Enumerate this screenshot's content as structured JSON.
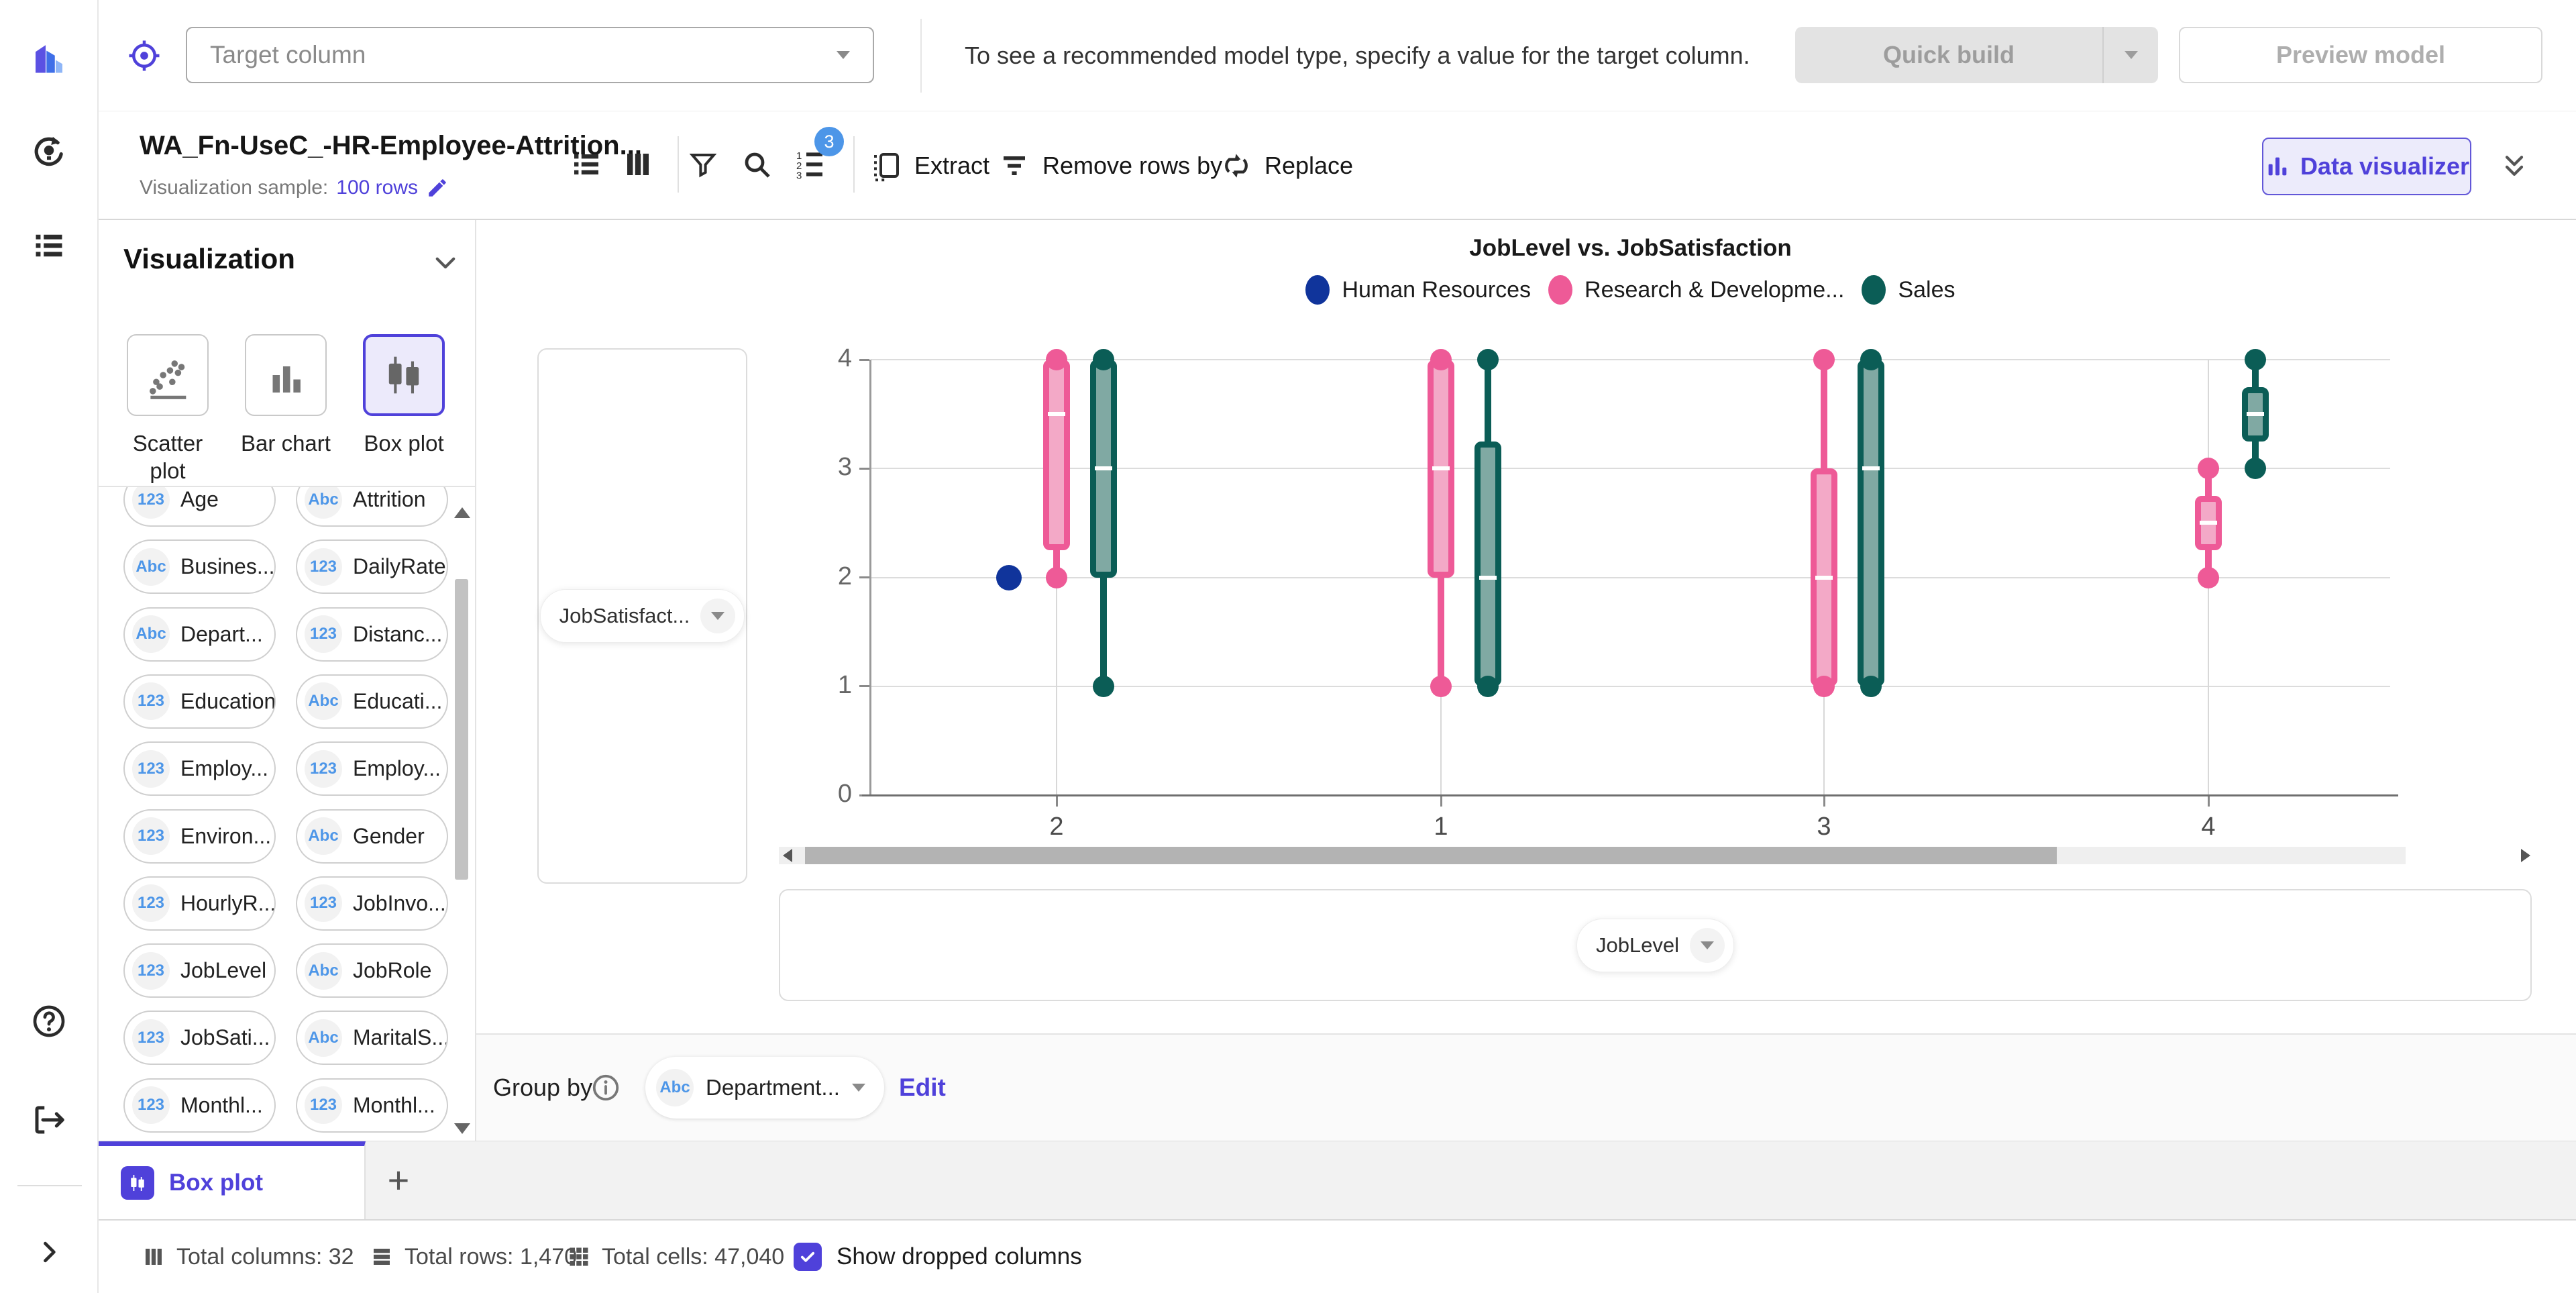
{
  "accent_color": "#4F41DA",
  "type_badge_color": "#4D96E8",
  "top_bar": {
    "target_placeholder": "Target column",
    "hint": "To see a recommended model type, specify a value for the target column.",
    "quick_build_label": "Quick build",
    "preview_model_label": "Preview model"
  },
  "dataset_bar": {
    "title": "WA_Fn-UseC_-HR-Employee-Attrition...",
    "sample_label": "Visualization sample:",
    "sample_value": "100 rows",
    "sort_badge": "3",
    "extract_label": "Extract",
    "remove_rows_label": "Remove rows by",
    "replace_label": "Replace",
    "data_visualizer_label": "Data visualizer"
  },
  "viz_panel": {
    "title": "Visualization",
    "chart_types": [
      {
        "label": "Scatter plot",
        "selected": false
      },
      {
        "label": "Bar chart",
        "selected": false
      },
      {
        "label": "Box plot",
        "selected": true
      }
    ]
  },
  "columns_panel": {
    "left": [
      {
        "type": "123",
        "label": "Age"
      },
      {
        "type": "Abc",
        "label": "Busines..."
      },
      {
        "type": "Abc",
        "label": "Depart..."
      },
      {
        "type": "123",
        "label": "Education"
      },
      {
        "type": "123",
        "label": "Employ..."
      },
      {
        "type": "123",
        "label": "Environ..."
      },
      {
        "type": "123",
        "label": "HourlyR..."
      },
      {
        "type": "123",
        "label": "JobLevel"
      },
      {
        "type": "123",
        "label": "JobSati..."
      },
      {
        "type": "123",
        "label": "Monthl..."
      }
    ],
    "right": [
      {
        "type": "Abc",
        "label": "Attrition"
      },
      {
        "type": "123",
        "label": "DailyRate"
      },
      {
        "type": "123",
        "label": "Distanc..."
      },
      {
        "type": "Abc",
        "label": "Educati..."
      },
      {
        "type": "123",
        "label": "Employ..."
      },
      {
        "type": "Abc",
        "label": "Gender"
      },
      {
        "type": "123",
        "label": "JobInvo..."
      },
      {
        "type": "Abc",
        "label": "JobRole"
      },
      {
        "type": "Abc",
        "label": "MaritalS..."
      },
      {
        "type": "123",
        "label": "Monthl..."
      }
    ]
  },
  "axis_fields": {
    "y_field": "JobSatisfact...",
    "x_field": "JobLevel"
  },
  "group_by": {
    "label": "Group by",
    "field_type": "Abc",
    "field_label": "Department...",
    "edit_label": "Edit"
  },
  "tabs": {
    "active_label": "Box plot",
    "add_label": "+"
  },
  "status_bar": {
    "total_columns": "Total columns: 32",
    "total_rows": "Total rows: 1,470",
    "total_cells": "Total cells: 47,040",
    "show_dropped_label": "Show dropped columns",
    "show_dropped_checked": true
  },
  "chart_data": {
    "type": "box",
    "title": "JobLevel vs. JobSatisfaction",
    "xlabel": "JobLevel",
    "ylabel": "JobSatisfaction",
    "x_categories": [
      "2",
      "1",
      "3",
      "4"
    ],
    "y_ticks": [
      0,
      1,
      2,
      3,
      4
    ],
    "ylim": [
      0,
      4
    ],
    "grid": true,
    "legend_position": "top",
    "series": [
      {
        "name": "Human Resources",
        "color": "#10349B",
        "offset": -71,
        "points": [
          {
            "category": "2",
            "value": 2
          }
        ],
        "boxes": []
      },
      {
        "name": "Research & Developme...",
        "color": "#EE5A97",
        "fill": "#F3A9C7",
        "offset": 0,
        "points": [],
        "boxes": [
          {
            "category": "2",
            "min": 2,
            "q1": 2.25,
            "median": 3.5,
            "q3": 4,
            "max": 4
          },
          {
            "category": "1",
            "min": 1,
            "q1": 2,
            "median": 3,
            "q3": 4,
            "max": 4
          },
          {
            "category": "3",
            "min": 1,
            "q1": 1,
            "median": 2,
            "q3": 3,
            "max": 4
          },
          {
            "category": "4",
            "min": 2,
            "q1": 2.25,
            "median": 2.5,
            "q3": 2.75,
            "max": 3
          }
        ]
      },
      {
        "name": "Sales",
        "color": "#0B5D56",
        "fill": "#80A9A3",
        "offset": 70,
        "points": [],
        "boxes": [
          {
            "category": "2",
            "min": 1,
            "q1": 2,
            "median": 3,
            "q3": 4,
            "max": 4
          },
          {
            "category": "1",
            "min": 1,
            "q1": 1,
            "median": 2,
            "q3": 3.25,
            "max": 4
          },
          {
            "category": "3",
            "min": 1,
            "q1": 1,
            "median": 3,
            "q3": 4,
            "max": 4
          },
          {
            "category": "4",
            "min": 3,
            "q1": 3.25,
            "median": 3.5,
            "q3": 3.75,
            "max": 4
          }
        ]
      }
    ]
  }
}
